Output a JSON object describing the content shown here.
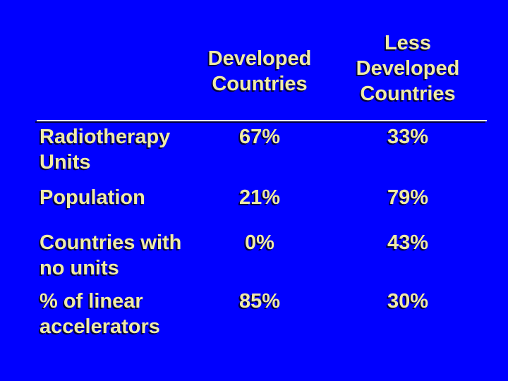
{
  "slide": {
    "background_color": "#0000FF",
    "text_color": "#EFEBA7",
    "shadow_color": "#00003C",
    "divider_color": "#FFFFFF"
  },
  "table": {
    "header": {
      "developed_lines": [
        "Developed",
        "Countries"
      ],
      "less_developed_lines": [
        "Less",
        "Developed",
        "Countries"
      ]
    },
    "rows": [
      {
        "label_lines": [
          "Radiotherapy",
          "Units"
        ],
        "developed": "67%",
        "less_developed": "33%"
      },
      {
        "label_lines": [
          "Population"
        ],
        "developed": "21%",
        "less_developed": "79%"
      },
      {
        "label_lines": [
          "Countries with",
          "no units"
        ],
        "developed": "0%",
        "less_developed": "43%"
      },
      {
        "label_lines": [
          "% of linear",
          "accelerators"
        ],
        "developed": "85%",
        "less_developed": "30%"
      }
    ]
  },
  "chart_data": {
    "type": "table",
    "columns": [
      "",
      "Developed Countries",
      "Less Developed Countries"
    ],
    "rows": [
      [
        "Radiotherapy Units",
        "67%",
        "33%"
      ],
      [
        "Population",
        "21%",
        "79%"
      ],
      [
        "Countries with no units",
        "0%",
        "43%"
      ],
      [
        "% of linear accelerators",
        "85%",
        "30%"
      ]
    ]
  }
}
